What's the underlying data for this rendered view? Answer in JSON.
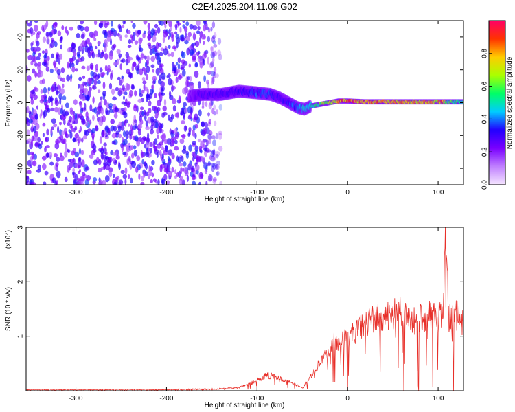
{
  "chart_data": [
    {
      "type": "heatmap",
      "title": "C2E4.2025.204.11.09.G02",
      "xlabel": "Height of straight line (km)",
      "ylabel": "Frequency (Hz)",
      "xlim": [
        -355,
        128
      ],
      "ylim": [
        -50,
        50
      ],
      "x_ticks": [
        -300,
        -200,
        -100,
        0,
        100
      ],
      "x_tick_labels": [
        "-300",
        "-200",
        "-100",
        "0",
        "100"
      ],
      "y_ticks": [
        -40,
        -20,
        0,
        20,
        40
      ],
      "y_tick_labels": [
        "-40",
        "-20",
        "0",
        "20",
        "40"
      ],
      "colorbar": {
        "label": "Normalized spectral amplitude",
        "range": [
          0,
          1
        ],
        "ticks": [
          0.0,
          0.2,
          0.4,
          0.6,
          0.8
        ],
        "tick_labels": [
          "0.0",
          "0.2",
          "0.4",
          "0.6",
          "0.8"
        ],
        "colors": [
          "#f5e6ff",
          "#c080ff",
          "#7a00ff",
          "#2200ff",
          "#00ccff",
          "#00ff66",
          "#aaff00",
          "#ffcc00",
          "#ff3300",
          "#ff0066"
        ]
      },
      "noise_region": {
        "x": [
          -355,
          -140
        ],
        "y": [
          -50,
          50
        ],
        "level": 0.12
      },
      "ridge": {
        "x": [
          -175,
          -160,
          -140,
          -120,
          -100,
          -85,
          -75,
          -65,
          -55,
          -48,
          -40,
          -30,
          -20,
          -10,
          0,
          20,
          40,
          60,
          80,
          100,
          105,
          110,
          128
        ],
        "y": [
          4,
          5,
          5,
          7,
          6,
          5,
          3,
          0,
          -3,
          -4,
          -2,
          -1,
          0,
          1,
          1,
          0.5,
          0.5,
          0.5,
          0.5,
          0.5,
          0.5,
          0.5,
          0.5
        ],
        "amplitude": [
          0.2,
          0.28,
          0.3,
          0.32,
          0.38,
          0.35,
          0.3,
          0.35,
          0.4,
          0.45,
          0.5,
          0.6,
          0.7,
          0.8,
          0.9,
          0.85,
          0.8,
          0.8,
          0.8,
          0.75,
          0.9,
          0.6,
          0.5
        ]
      }
    },
    {
      "type": "line",
      "xlabel": "Height of straight line (km)",
      "ylabel": "SNR (10 * v/v)",
      "y_multiplier": "(x10⁴)",
      "xlim": [
        -355,
        128
      ],
      "ylim": [
        0,
        3
      ],
      "x_ticks": [
        -300,
        -200,
        -100,
        0,
        100
      ],
      "x_tick_labels": [
        "-300",
        "-200",
        "-100",
        "0",
        "100"
      ],
      "y_ticks": [
        1,
        2,
        3
      ],
      "y_tick_labels": [
        "1",
        "2",
        "3"
      ],
      "series": [
        {
          "color": "#e8302a",
          "x": [
            -355,
            -300,
            -250,
            -200,
            -150,
            -120,
            -100,
            -90,
            -80,
            -70,
            -60,
            -50,
            -40,
            -30,
            -20,
            -15,
            -10,
            0,
            10,
            20,
            30,
            40,
            50,
            55,
            60,
            70,
            80,
            90,
            100,
            105,
            108,
            112,
            120,
            128
          ],
          "y": [
            0.02,
            0.02,
            0.02,
            0.02,
            0.03,
            0.06,
            0.2,
            0.3,
            0.28,
            0.2,
            0.15,
            0.05,
            0.3,
            0.55,
            0.75,
            0.95,
            0.9,
            1.05,
            1.15,
            1.3,
            1.4,
            1.45,
            1.4,
            1.6,
            1.45,
            1.35,
            1.4,
            1.45,
            1.4,
            1.5,
            2.9,
            1.4,
            1.45,
            1.3
          ]
        }
      ]
    }
  ]
}
